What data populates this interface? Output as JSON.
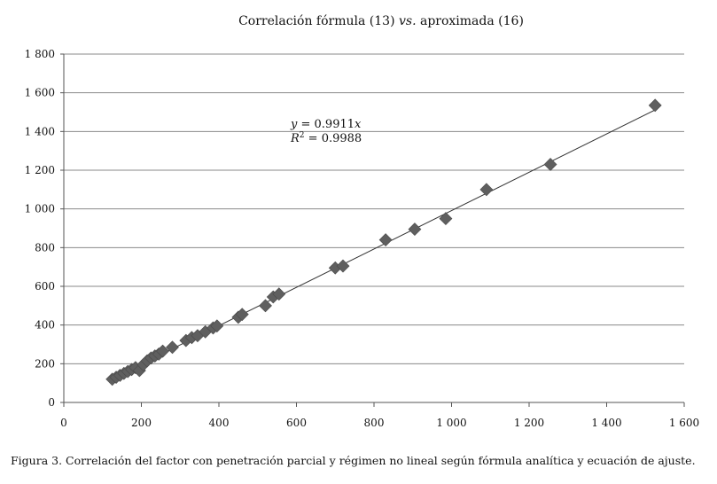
{
  "chart_data": {
    "type": "scatter",
    "title_prefix": "Correlación fórmula (13) ",
    "title_italic": "vs.",
    "title_suffix": " aproximada (16)",
    "xlim": [
      0,
      1600
    ],
    "ylim": [
      0,
      1800
    ],
    "x_ticks": [
      0,
      200,
      400,
      600,
      800,
      1000,
      1200,
      1400,
      1600
    ],
    "x_tick_labels": [
      "0",
      "200",
      "400",
      "600",
      "800",
      "1 000",
      "1 200",
      "1 400",
      "1 600"
    ],
    "y_ticks": [
      0,
      200,
      400,
      600,
      800,
      1000,
      1200,
      1400,
      1600,
      1800
    ],
    "y_tick_labels": [
      "0",
      "200",
      "400",
      "600",
      "800",
      "1 000",
      "1 200",
      "1 400",
      "1 600",
      "1 800"
    ],
    "grid": "horizontal",
    "trendline": {
      "slope": 0.9911,
      "x_range": [
        125,
        1525
      ]
    },
    "equation": {
      "y_var": "y",
      "eq1_mid": " = 0.9911",
      "x_var": "x",
      "r_var": "R",
      "r_exp": "2",
      "eq2_mid": " = 0.9988"
    },
    "x": [
      125,
      135,
      145,
      155,
      165,
      175,
      185,
      195,
      205,
      215,
      225,
      235,
      245,
      255,
      280,
      315,
      330,
      345,
      365,
      385,
      395,
      450,
      460,
      520,
      540,
      555,
      700,
      720,
      830,
      905,
      985,
      1090,
      1255,
      1525
    ],
    "y": [
      120,
      130,
      140,
      150,
      160,
      170,
      180,
      165,
      195,
      215,
      230,
      240,
      250,
      265,
      285,
      320,
      335,
      345,
      365,
      385,
      395,
      440,
      455,
      500,
      545,
      560,
      695,
      705,
      840,
      895,
      950,
      1100,
      1230,
      1535
    ]
  },
  "caption": "Figura 3. Correlación del factor con penetración parcial y régimen no lineal según fórmula analítica y ecuación de ajuste."
}
